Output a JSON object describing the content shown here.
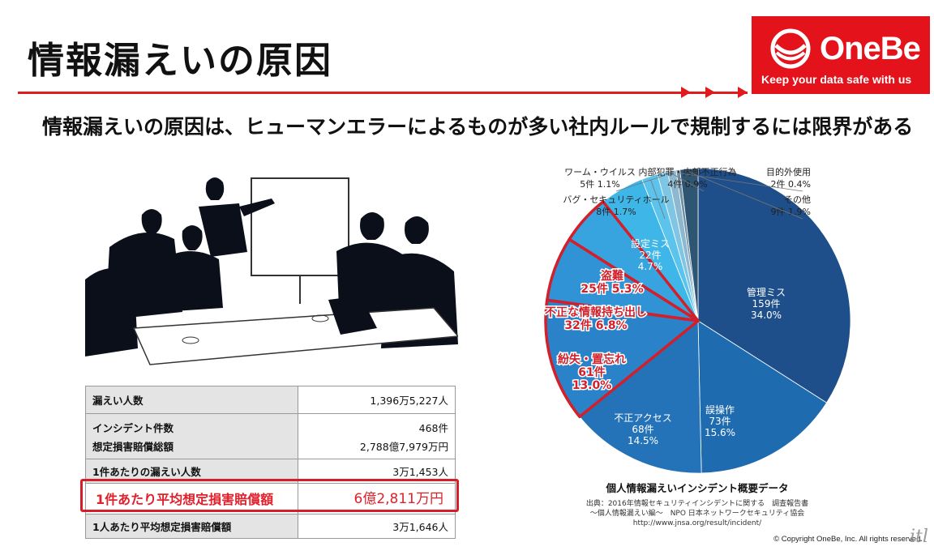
{
  "slide": {
    "title": "情報漏えいの原因",
    "subtitle": "情報漏えいの原因は、ヒューマンエラーによるものが多い社内ルールで規制するには限界がある"
  },
  "logo": {
    "name": "OneBe",
    "tagline": "Keep your data safe with us",
    "color": "#e4121b"
  },
  "stats_table": {
    "rows": [
      {
        "label": "漏えい人数",
        "value": "1,396万5,227人"
      },
      {
        "label": "インシデント件数",
        "value": "468件"
      },
      {
        "label": "想定損害賠償総額",
        "value": "2,788億7,979万円"
      },
      {
        "label": "1件あたりの漏えい人数",
        "value": "3万1,453人"
      },
      {
        "label": "1件あたり平均想定損害賠償額",
        "value": "6億2,811万円"
      },
      {
        "label": "1人あたり平均想定損害賠償額",
        "value": "3万1,646人"
      }
    ]
  },
  "chart_data": {
    "type": "pie",
    "title": "個人情報漏えいインシデント概要データ",
    "source": [
      "出典：2016年情報セキュリティインシデントに関する　調査報告書",
      "～個人情報漏えい編～　NPO 日本ネットワークセキュリティ協会",
      "http://www.jnsa.org/result/incident/"
    ],
    "slices": [
      {
        "name": "管理ミス",
        "count": "159件",
        "percent_label": "34.0%",
        "value": 34.0,
        "color": "#1e4f8a"
      },
      {
        "name": "誤操作",
        "count": "73件",
        "percent_label": "15.6%",
        "value": 15.6,
        "color": "#1f6bb0"
      },
      {
        "name": "不正アクセス",
        "count": "68件",
        "percent_label": "14.5%",
        "value": 14.5,
        "color": "#2472b8"
      },
      {
        "name": "紛失・置忘れ",
        "count": "61件",
        "percent_label": "13.0%",
        "value": 13.0,
        "color": "#2a83c9",
        "highlight": true
      },
      {
        "name": "不正な情報持ち出し",
        "count": "32件",
        "percent_label": "6.8%",
        "value": 6.8,
        "color": "#2f93d5",
        "highlight": true
      },
      {
        "name": "盗難",
        "count": "25件",
        "percent_label": "5.3%",
        "value": 5.3,
        "color": "#37a3df",
        "highlight": true
      },
      {
        "name": "設定ミス",
        "count": "22件",
        "percent_label": "4.7%",
        "value": 4.7,
        "color": "#3fb6e8"
      },
      {
        "name": "バグ・セキュリティホール",
        "count": "8件",
        "percent_label": "1.7%",
        "value": 1.7,
        "color": "#5cc3ec"
      },
      {
        "name": "ワーム・ウイルス",
        "count": "5件",
        "percent_label": "1.1%",
        "value": 1.1,
        "color": "#7fc6e4"
      },
      {
        "name": "内部犯罪・内部不正行為",
        "count": "4件",
        "percent_label": "0.9%",
        "value": 0.9,
        "color": "#8db8cf"
      },
      {
        "name": "目的外使用",
        "count": "2件",
        "percent_label": "0.4%",
        "value": 0.4,
        "color": "#6f8fa6"
      },
      {
        "name": "その他",
        "count": "9件",
        "percent_label": "1.9%",
        "value": 1.9,
        "color": "#2e5571"
      }
    ],
    "highlight_color": "#d21f2a"
  },
  "footer": {
    "copyright": "© Copyright OneBe, Inc. All rights reserved.",
    "corner_mark": "itl"
  }
}
